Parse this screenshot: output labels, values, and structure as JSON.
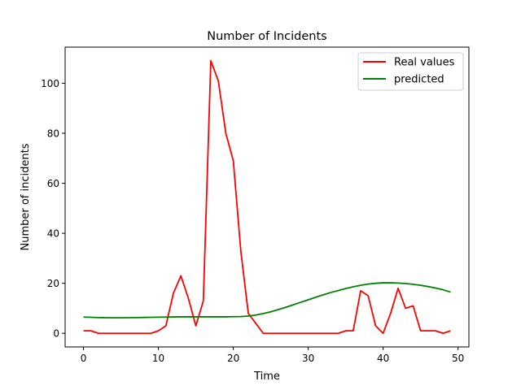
{
  "chart_data": {
    "type": "line",
    "title": "Number of Incidents",
    "xlabel": "Time",
    "ylabel": "Number of incidents",
    "xlim": [
      -2.45,
      51.45
    ],
    "ylim": [
      -5.45,
      114.45
    ],
    "xticks": [
      0,
      10,
      20,
      30,
      40,
      50
    ],
    "yticks": [
      0,
      20,
      40,
      60,
      80,
      100
    ],
    "grid": false,
    "legend_position": "top-right",
    "series": [
      {
        "name": "Real values",
        "color": "#ff0000",
        "x": [
          0,
          1,
          2,
          3,
          4,
          5,
          6,
          7,
          8,
          9,
          10,
          11,
          12,
          13,
          14,
          15,
          16,
          17,
          18,
          19,
          20,
          21,
          22,
          23,
          24,
          25,
          26,
          27,
          28,
          29,
          30,
          31,
          32,
          33,
          34,
          35,
          36,
          37,
          38,
          39,
          40,
          41,
          42,
          43,
          44,
          45,
          46,
          47,
          48,
          49
        ],
        "values": [
          1,
          1,
          0,
          0,
          0,
          0,
          0,
          0,
          0,
          0,
          1,
          3,
          16,
          23,
          14,
          3,
          13,
          109,
          101,
          80,
          69,
          33,
          8,
          4,
          0,
          0,
          0,
          0,
          0,
          0,
          0,
          0,
          0,
          0,
          0,
          1,
          1,
          17,
          15,
          3,
          0,
          8,
          18,
          10,
          11,
          1,
          1,
          1,
          0,
          1
        ]
      },
      {
        "name": "predicted",
        "color": "#008000",
        "x": [
          0,
          1,
          2,
          3,
          4,
          5,
          6,
          7,
          8,
          9,
          10,
          11,
          12,
          13,
          14,
          15,
          16,
          17,
          18,
          19,
          20,
          21,
          22,
          23,
          24,
          25,
          26,
          27,
          28,
          29,
          30,
          31,
          32,
          33,
          34,
          35,
          36,
          37,
          38,
          39,
          40,
          41,
          42,
          43,
          44,
          45,
          46,
          47,
          48,
          49
        ],
        "values": [
          6.5,
          6.4,
          6.3,
          6.25,
          6.2,
          6.2,
          6.25,
          6.3,
          6.35,
          6.4,
          6.45,
          6.5,
          6.55,
          6.6,
          6.6,
          6.6,
          6.6,
          6.6,
          6.6,
          6.6,
          6.65,
          6.7,
          6.9,
          7.3,
          7.9,
          8.6,
          9.5,
          10.4,
          11.4,
          12.4,
          13.4,
          14.4,
          15.4,
          16.3,
          17.1,
          17.9,
          18.6,
          19.2,
          19.7,
          20.0,
          20.2,
          20.2,
          20.1,
          19.9,
          19.6,
          19.2,
          18.7,
          18.1,
          17.4,
          16.5
        ]
      }
    ]
  }
}
